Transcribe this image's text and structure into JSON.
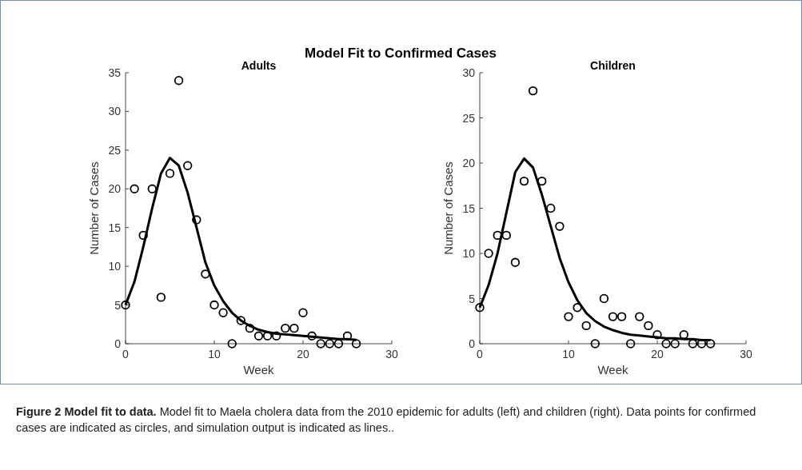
{
  "chart_data": [
    {
      "type": "scatter",
      "title": "Adults",
      "xlabel": "Week",
      "ylabel": "Number of Cases",
      "xlim": [
        0,
        30
      ],
      "ylim": [
        0,
        35
      ],
      "xticks": [
        0,
        10,
        20,
        30
      ],
      "yticks": [
        0,
        5,
        10,
        15,
        20,
        25,
        30,
        35
      ],
      "x": [
        0,
        1,
        2,
        3,
        4,
        5,
        6,
        7,
        8,
        9,
        10,
        11,
        12,
        13,
        14,
        15,
        16,
        17,
        18,
        19,
        20,
        21,
        22,
        23,
        24,
        25,
        26
      ],
      "series": [
        {
          "marker": "circle",
          "color": "#000000",
          "values": [
            5,
            20,
            14,
            20,
            6,
            22,
            34,
            23,
            16,
            9,
            5,
            4,
            0,
            3,
            2,
            1,
            1,
            1,
            2,
            2,
            4,
            1,
            0,
            0,
            0,
            1,
            0
          ]
        },
        {
          "type": "line",
          "line_style": "solid",
          "color": "#000000",
          "values": [
            5,
            8,
            12.5,
            17.5,
            22,
            24,
            23,
            19.5,
            15,
            10.5,
            7.5,
            5.5,
            4,
            3,
            2.3,
            1.8,
            1.5,
            1.3,
            1.2,
            1.1,
            1,
            0.9,
            0.8,
            0.7,
            0.6,
            0.6,
            0.5
          ]
        }
      ],
      "annotations": [
        "Model Fit to Confirmed Cases"
      ]
    },
    {
      "type": "scatter",
      "title": "Children",
      "xlabel": "Week",
      "ylabel": "Number of Cases",
      "xlim": [
        0,
        30
      ],
      "ylim": [
        0,
        30
      ],
      "xticks": [
        0,
        10,
        20,
        30
      ],
      "yticks": [
        0,
        5,
        10,
        15,
        20,
        25,
        30
      ],
      "x": [
        0,
        1,
        2,
        3,
        4,
        5,
        6,
        7,
        8,
        9,
        10,
        11,
        12,
        13,
        14,
        15,
        16,
        17,
        18,
        19,
        20,
        21,
        22,
        23,
        24,
        25,
        26
      ],
      "series": [
        {
          "marker": "circle",
          "color": "#000000",
          "values": [
            4,
            10,
            12,
            12,
            9,
            18,
            28,
            18,
            15,
            13,
            3,
            4,
            2,
            0,
            5,
            3,
            3,
            0,
            3,
            2,
            1,
            0,
            0,
            1,
            0,
            0,
            0
          ]
        },
        {
          "type": "line",
          "line_style": "solid",
          "color": "#000000",
          "values": [
            4,
            6.5,
            10,
            14.5,
            19,
            20.5,
            19.5,
            16.5,
            13,
            9.5,
            6.8,
            4.8,
            3.4,
            2.5,
            1.9,
            1.5,
            1.2,
            1,
            0.9,
            0.8,
            0.7,
            0.6,
            0.6,
            0.5,
            0.5,
            0.4,
            0.4
          ]
        }
      ],
      "annotations": [
        "Figure 2 Model fit to data.",
        "Model fit to Maela cholera data from the 2010 epidemic for adults (left) and children (right). Data points for confirmed cases are indicated as circles, and simulation output is indicated as lines.."
      ]
    }
  ]
}
